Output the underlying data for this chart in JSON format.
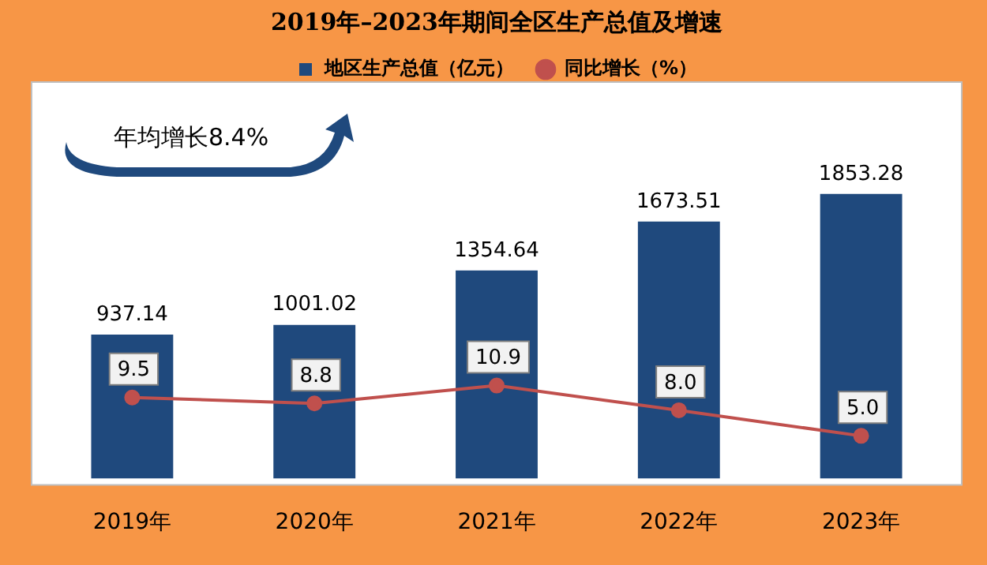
{
  "chart_data": {
    "type": "bar",
    "title": "2019年–2023年期间全区生产总值及增速",
    "categories": [
      "2019年",
      "2020年",
      "2021年",
      "2022年",
      "2023年"
    ],
    "series": [
      {
        "name": "地区生产总值（亿元）",
        "color": "#1f497d",
        "values": [
          937.14,
          1001.02,
          1354.64,
          1673.51,
          1853.28
        ],
        "value_labels": [
          "937.14",
          "1001.02",
          "1354.64",
          "1673.51",
          "1853.28"
        ]
      },
      {
        "name": "同比增长（%）",
        "type": "line",
        "axis": "y2",
        "color": "#c0504d",
        "values": [
          9.5,
          8.8,
          10.9,
          8.0,
          5.0
        ],
        "value_labels": [
          "9.5",
          "8.8",
          "10.9",
          "8.0",
          "5.0"
        ]
      }
    ],
    "data_labels": true,
    "legend": "top",
    "marker": "circle",
    "line_style": "solid",
    "annotations": [
      "年均增长8.4%"
    ]
  }
}
